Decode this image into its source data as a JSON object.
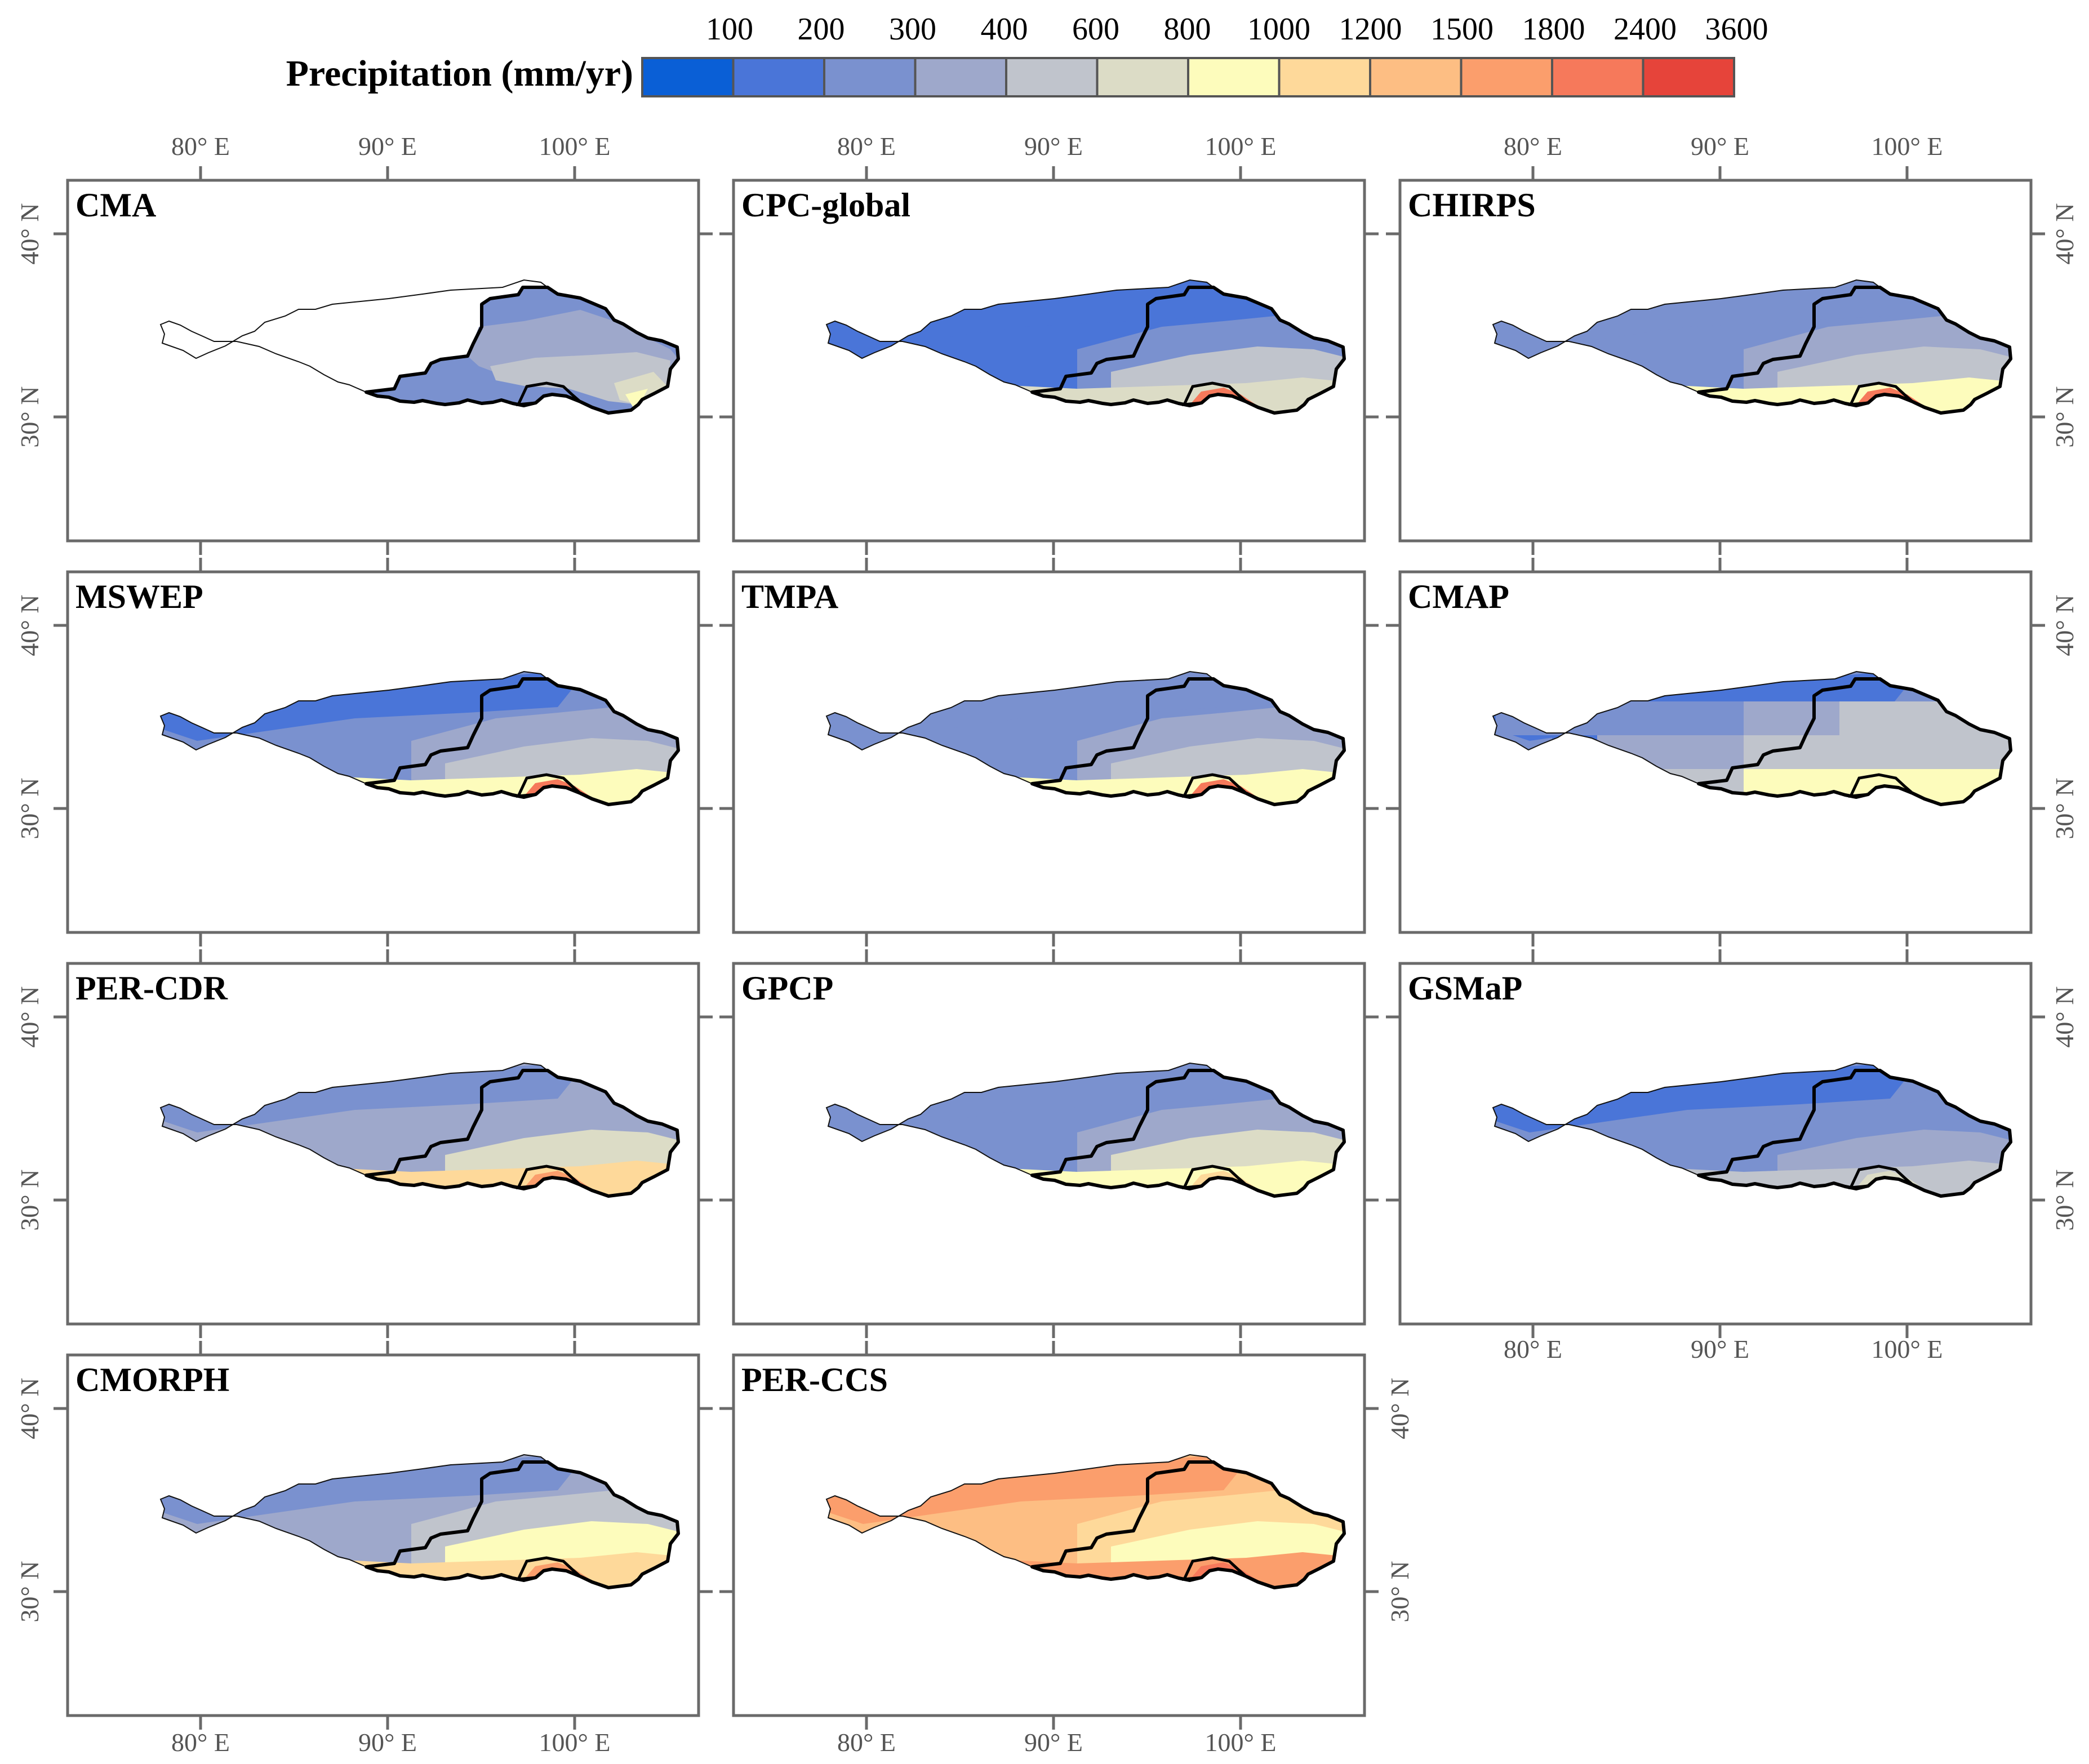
{
  "legend": {
    "title": "Precipitation (mm/yr)",
    "breaks": [
      "100",
      "200",
      "300",
      "400",
      "600",
      "800",
      "1000",
      "1200",
      "1500",
      "1800",
      "2400",
      "3600"
    ],
    "colors": [
      "#0a5fd6",
      "#4a75d8",
      "#7a91cf",
      "#9ea8cb",
      "#c0c4cc",
      "#dcdcc6",
      "#fdfcbc",
      "#fed99a",
      "#fdbe83",
      "#fb9e6c",
      "#f6795b",
      "#e6443a"
    ]
  },
  "axes": {
    "lon_labels": [
      "80° E",
      "90° E",
      "100° E"
    ],
    "lat_labels": [
      "40° N",
      "30° N"
    ]
  },
  "panels": [
    {
      "name": "CMA",
      "scheme": [
        2,
        2,
        3,
        4,
        5,
        6
      ],
      "coverage": "east-only"
    },
    {
      "name": "CPC-global",
      "scheme": [
        1,
        1,
        2,
        4,
        5,
        10
      ],
      "coverage": "full"
    },
    {
      "name": "CHIRPS",
      "scheme": [
        2,
        2,
        3,
        4,
        6,
        10
      ],
      "coverage": "full"
    },
    {
      "name": "MSWEP",
      "scheme": [
        1,
        2,
        3,
        4,
        6,
        10
      ],
      "coverage": "full"
    },
    {
      "name": "TMPA",
      "scheme": [
        2,
        2,
        3,
        4,
        6,
        10
      ],
      "coverage": "full"
    },
    {
      "name": "CMAP",
      "scheme": [
        1,
        2,
        3,
        4,
        6,
        6
      ],
      "coverage": "coarse"
    },
    {
      "name": "PER-CDR",
      "scheme": [
        2,
        3,
        3,
        5,
        7,
        9
      ],
      "coverage": "full"
    },
    {
      "name": "GPCP",
      "scheme": [
        2,
        2,
        3,
        5,
        6,
        7
      ],
      "coverage": "full"
    },
    {
      "name": "GSMaP",
      "scheme": [
        1,
        2,
        2,
        3,
        4,
        5
      ],
      "coverage": "full"
    },
    {
      "name": "CMORPH",
      "scheme": [
        2,
        3,
        4,
        6,
        7,
        9
      ],
      "coverage": "full"
    },
    {
      "name": "PER-CCS",
      "scheme": [
        9,
        8,
        7,
        6,
        9,
        10
      ],
      "coverage": "full"
    }
  ]
}
